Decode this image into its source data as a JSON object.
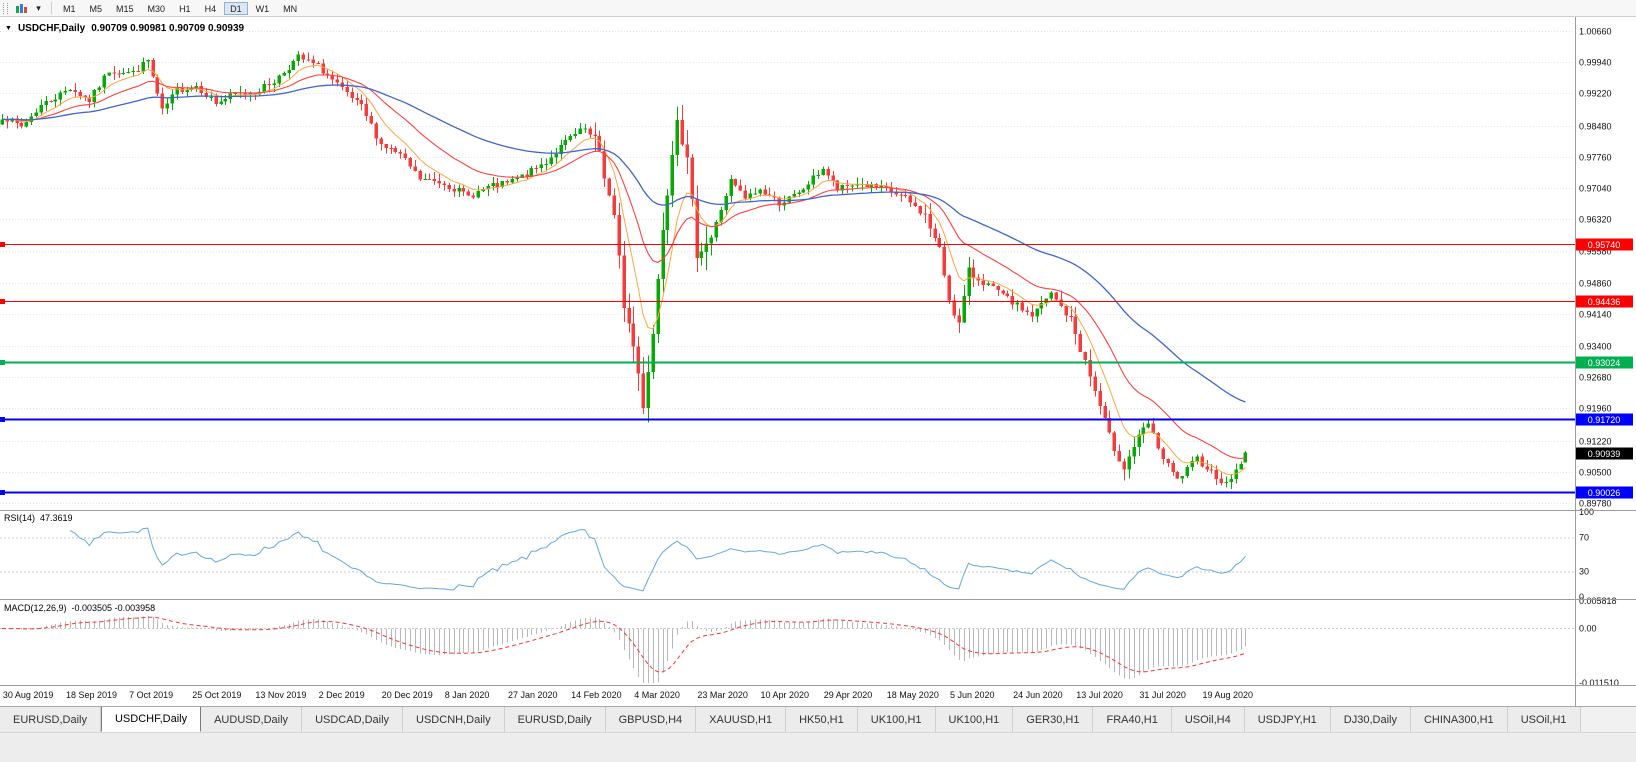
{
  "toolbar": {
    "timeframes": [
      "M1",
      "M5",
      "M15",
      "M30",
      "H1",
      "H4",
      "D1",
      "W1",
      "MN"
    ],
    "active_timeframe": "D1"
  },
  "chart_data": {
    "type": "candlestick",
    "symbol": "USDCHF",
    "timeframe": "Daily",
    "symbol_title": "USDCHF,Daily",
    "ohlc_line": "0.90709 0.90981 0.90709 0.90939",
    "price_axis": {
      "min": 0.8978,
      "max": 1.0066,
      "ticks": [
        "1.00660",
        "0.99940",
        "0.99220",
        "0.98480",
        "0.97760",
        "0.97040",
        "0.96320",
        "0.95580",
        "0.94860",
        "0.94140",
        "0.93400",
        "0.92680",
        "0.91960",
        "0.91220",
        "0.90500",
        "0.89780"
      ]
    },
    "current_price": {
      "label": "0.90939",
      "bg": "#000000",
      "text_color": "#ffffff"
    },
    "levels": [
      {
        "price": 0.9574,
        "label": "0.95740",
        "color": "#ff0000",
        "width": 1
      },
      {
        "price": 0.94436,
        "label": "0.94436",
        "color": "#ff0000",
        "width": 1
      },
      {
        "price": 0.93024,
        "label": "0.93024",
        "color": "#00b050",
        "width": 2
      },
      {
        "price": 0.9172,
        "label": "0.91720",
        "color": "#0000ff",
        "width": 2
      },
      {
        "price": 0.90026,
        "label": "0.90026",
        "color": "#0000ff",
        "width": 2
      }
    ],
    "x_labels": [
      "30 Aug 2019",
      "18 Sep 2019",
      "7 Oct 2019",
      "25 Oct 2019",
      "13 Nov 2019",
      "2 Dec 2019",
      "20 Dec 2019",
      "8 Jan 2020",
      "27 Jan 2020",
      "14 Feb 2020",
      "4 Mar 2020",
      "23 Mar 2020",
      "10 Apr 2020",
      "29 Apr 2020",
      "18 May 2020",
      "5 Jun 2020",
      "24 Jun 2020",
      "13 Jul 2020",
      "31 Jul 2020",
      "19 Aug 2020"
    ],
    "first_label_bar": 1,
    "bars_per_label": 13,
    "candles": {
      "count": 257,
      "seed": 7,
      "up_color": "#07a907",
      "down_color": "#f53b3b",
      "last_bar": {
        "open": 0.90709,
        "high": 0.90981,
        "low": 0.90709,
        "close": 0.90939
      },
      "close_anchors": [
        [
          0,
          0.987
        ],
        [
          4,
          0.9845
        ],
        [
          8,
          0.9895
        ],
        [
          12,
          0.992
        ],
        [
          14,
          0.9935
        ],
        [
          18,
          0.9905
        ],
        [
          22,
          0.9975
        ],
        [
          27,
          0.997
        ],
        [
          30,
          0.9998
        ],
        [
          33,
          0.988
        ],
        [
          36,
          0.993
        ],
        [
          40,
          0.994
        ],
        [
          44,
          0.99
        ],
        [
          48,
          0.992
        ],
        [
          52,
          0.9925
        ],
        [
          56,
          0.995
        ],
        [
          61,
          1.0005
        ],
        [
          65,
          0.9985
        ],
        [
          70,
          0.993
        ],
        [
          74,
          0.989
        ],
        [
          78,
          0.9805
        ],
        [
          82,
          0.978
        ],
        [
          86,
          0.9725
        ],
        [
          91,
          0.9715
        ],
        [
          96,
          0.9685
        ],
        [
          100,
          0.9705
        ],
        [
          104,
          0.9715
        ],
        [
          108,
          0.9735
        ],
        [
          112,
          0.9765
        ],
        [
          117,
          0.982
        ],
        [
          120,
          0.984
        ],
        [
          123,
          0.979
        ],
        [
          126,
          0.963
        ],
        [
          128,
          0.944
        ],
        [
          130,
          0.934
        ],
        [
          132,
          0.921
        ],
        [
          134,
          0.937
        ],
        [
          136,
          0.962
        ],
        [
          139,
          0.988
        ],
        [
          141,
          0.976
        ],
        [
          143,
          0.956
        ],
        [
          146,
          0.959
        ],
        [
          150,
          0.972
        ],
        [
          153,
          0.968
        ],
        [
          156,
          0.97
        ],
        [
          160,
          0.967
        ],
        [
          164,
          0.969
        ],
        [
          169,
          0.975
        ],
        [
          172,
          0.97
        ],
        [
          176,
          0.9715
        ],
        [
          182,
          0.97
        ],
        [
          186,
          0.968
        ],
        [
          190,
          0.964
        ],
        [
          193,
          0.956
        ],
        [
          195,
          0.945
        ],
        [
          197,
          0.939
        ],
        [
          199,
          0.951
        ],
        [
          203,
          0.948
        ],
        [
          208,
          0.944
        ],
        [
          212,
          0.941
        ],
        [
          216,
          0.946
        ],
        [
          220,
          0.94
        ],
        [
          224,
          0.927
        ],
        [
          228,
          0.913
        ],
        [
          231,
          0.906
        ],
        [
          233,
          0.911
        ],
        [
          236,
          0.916
        ],
        [
          239,
          0.908
        ],
        [
          242,
          0.903
        ],
        [
          246,
          0.908
        ],
        [
          249,
          0.905
        ],
        [
          252,
          0.902
        ],
        [
          255,
          0.9071
        ],
        [
          256,
          0.90939
        ]
      ]
    },
    "moving_averages": [
      {
        "period": 8,
        "color": "#ffa640",
        "width": 1
      },
      {
        "period": 21,
        "color": "#ff4040",
        "width": 1.1
      },
      {
        "period": 55,
        "color": "#4066cc",
        "width": 1.3
      }
    ],
    "rsi": {
      "label": "RSI(14)",
      "value": "47.3619",
      "period": 14,
      "color": "#63a8e0",
      "levels": [
        70,
        30
      ],
      "axis_labels": [
        "100",
        "70",
        "30",
        "0"
      ]
    },
    "macd": {
      "label": "MACD(12,26,9)",
      "value": "-0.003505 -0.003958",
      "fast": 12,
      "slow": 26,
      "signal": 9,
      "max": 0.005818,
      "min": -0.01151,
      "axis_labels": [
        "0.005818",
        "0.00",
        "-0.011510"
      ],
      "hist_color": "#b8b8b8",
      "signal_color": "#ff3030"
    }
  },
  "tabs": {
    "active_index": 1,
    "items": [
      {
        "label": "EURUSD,Daily"
      },
      {
        "label": "USDCHF,Daily"
      },
      {
        "label": "AUDUSD,Daily"
      },
      {
        "label": "USDCAD,Daily"
      },
      {
        "label": "USDCNH,Daily"
      },
      {
        "label": "EURUSD,Daily"
      },
      {
        "label": "GBPUSD,H4"
      },
      {
        "label": "XAUUSD,H1"
      },
      {
        "label": "HK50,H1"
      },
      {
        "label": "UK100,H1"
      },
      {
        "label": "UK100,H1"
      },
      {
        "label": "GER30,H1"
      },
      {
        "label": "FRA40,H1"
      },
      {
        "label": "USOil,H4"
      },
      {
        "label": "USDJPY,H1"
      },
      {
        "label": "DJ30,Daily"
      },
      {
        "label": "CHINA300,H1"
      },
      {
        "label": "USOil,H1"
      }
    ]
  }
}
